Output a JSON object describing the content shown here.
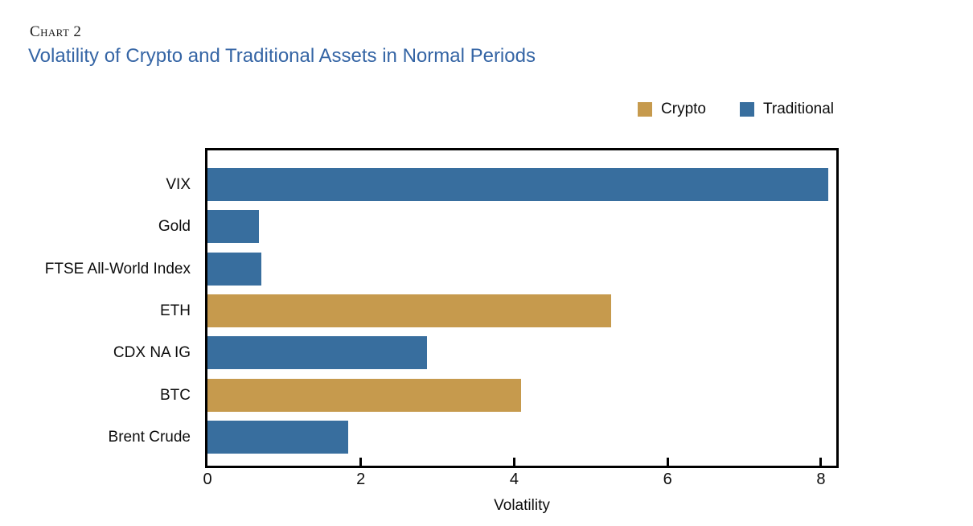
{
  "header": {
    "eyebrow": "Chart 2",
    "title": "Volatility of Crypto and Traditional Assets in Normal Periods"
  },
  "legend": [
    {
      "label": "Crypto",
      "color": "#C69A4D"
    },
    {
      "label": "Traditional",
      "color": "#386E9E"
    }
  ],
  "chart_data": {
    "type": "bar",
    "orientation": "horizontal",
    "title": "Volatility of Crypto and Traditional Assets in Normal Periods",
    "categories": [
      "VIX",
      "Gold",
      "FTSE All-World Index",
      "ETH",
      "CDX NA IG",
      "BTC",
      "Brent Crude"
    ],
    "values": [
      8.1,
      0.67,
      0.7,
      5.26,
      2.86,
      4.09,
      1.84
    ],
    "groups": [
      "Traditional",
      "Traditional",
      "Traditional",
      "Crypto",
      "Traditional",
      "Crypto",
      "Traditional"
    ],
    "colors": {
      "Crypto": "#C69A4D",
      "Traditional": "#386E9E"
    },
    "xlabel": "Volatility",
    "ylabel": "",
    "x_ticks": [
      0,
      2,
      4,
      6,
      8
    ],
    "xlim": [
      0,
      8.2
    ],
    "grid": false,
    "legend_position": "top-right"
  }
}
